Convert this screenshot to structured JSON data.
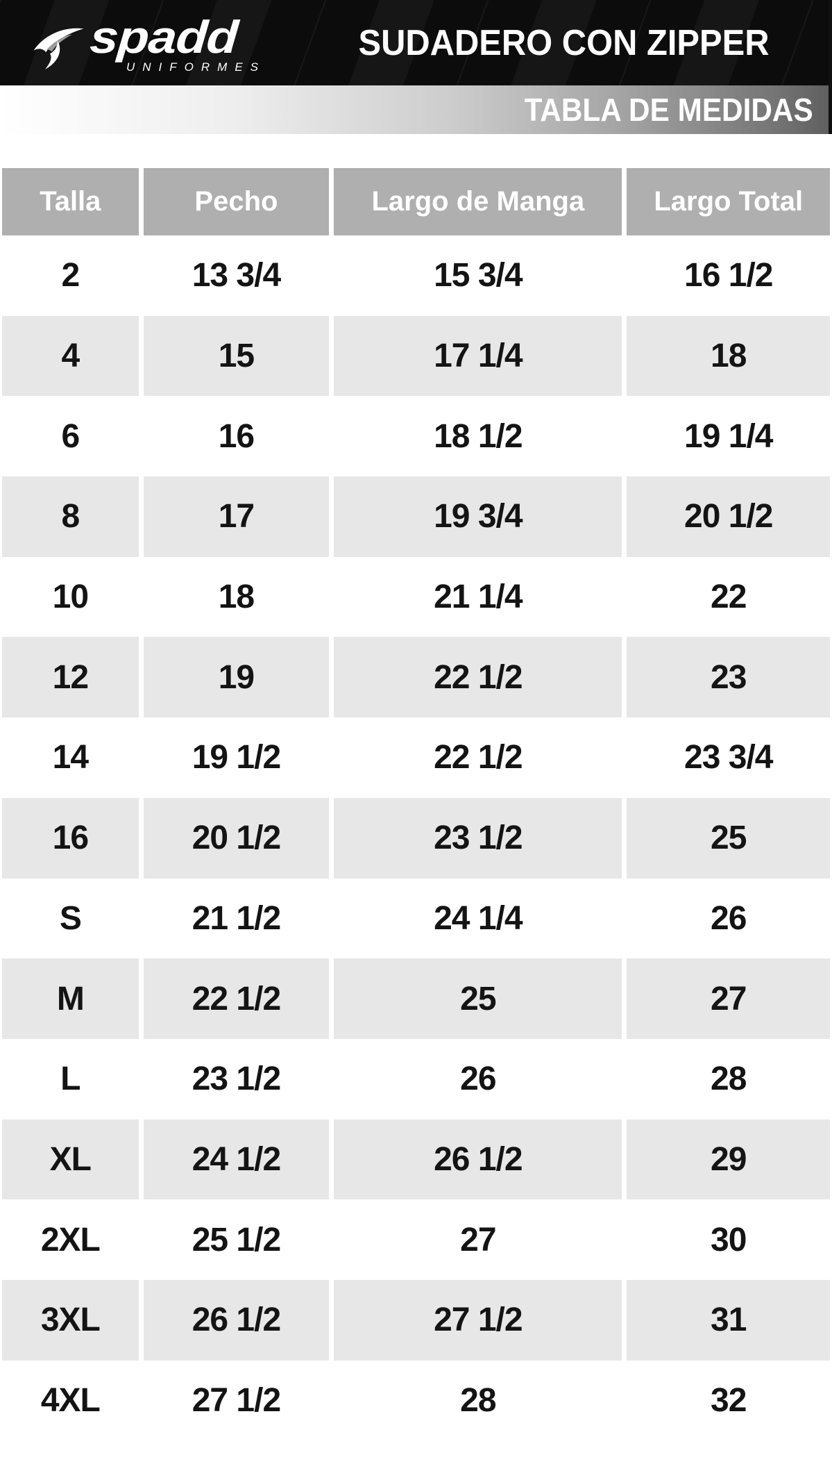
{
  "header": {
    "logo": {
      "brand": "spadd",
      "subtitle": "UNIFORMES"
    },
    "title": "SUDADERO CON ZIPPER"
  },
  "banner": {
    "label": "TABLA DE MEDIDAS"
  },
  "colors": {
    "header_bg": "#0c0c0c",
    "header_cell_bg": "#afafaf",
    "stripe_bg": "#e7e7e7",
    "banner_start": "#ffffff",
    "banner_end": "#5e5e5e",
    "text_dark": "#141414",
    "text_light": "#ffffff"
  },
  "table": {
    "columns": [
      "Talla",
      "Pecho",
      "Largo de Manga",
      "Largo Total"
    ],
    "rows": [
      [
        "2",
        "13 3/4",
        "15 3/4",
        "16 1/2"
      ],
      [
        "4",
        "15",
        "17 1/4",
        "18"
      ],
      [
        "6",
        "16",
        "18 1/2",
        "19 1/4"
      ],
      [
        "8",
        "17",
        "19 3/4",
        "20 1/2"
      ],
      [
        "10",
        "18",
        "21 1/4",
        "22"
      ],
      [
        "12",
        "19",
        "22 1/2",
        "23"
      ],
      [
        "14",
        "19 1/2",
        "22 1/2",
        "23 3/4"
      ],
      [
        "16",
        "20 1/2",
        "23 1/2",
        "25"
      ],
      [
        "S",
        "21 1/2",
        "24 1/4",
        "26"
      ],
      [
        "M",
        "22 1/2",
        "25",
        "27"
      ],
      [
        "L",
        "23 1/2",
        "26",
        "28"
      ],
      [
        "XL",
        "24 1/2",
        "26 1/2",
        "29"
      ],
      [
        "2XL",
        "25 1/2",
        "27",
        "30"
      ],
      [
        "3XL",
        "26 1/2",
        "27 1/2",
        "31"
      ],
      [
        "4XL",
        "27 1/2",
        "28",
        "32"
      ]
    ]
  }
}
